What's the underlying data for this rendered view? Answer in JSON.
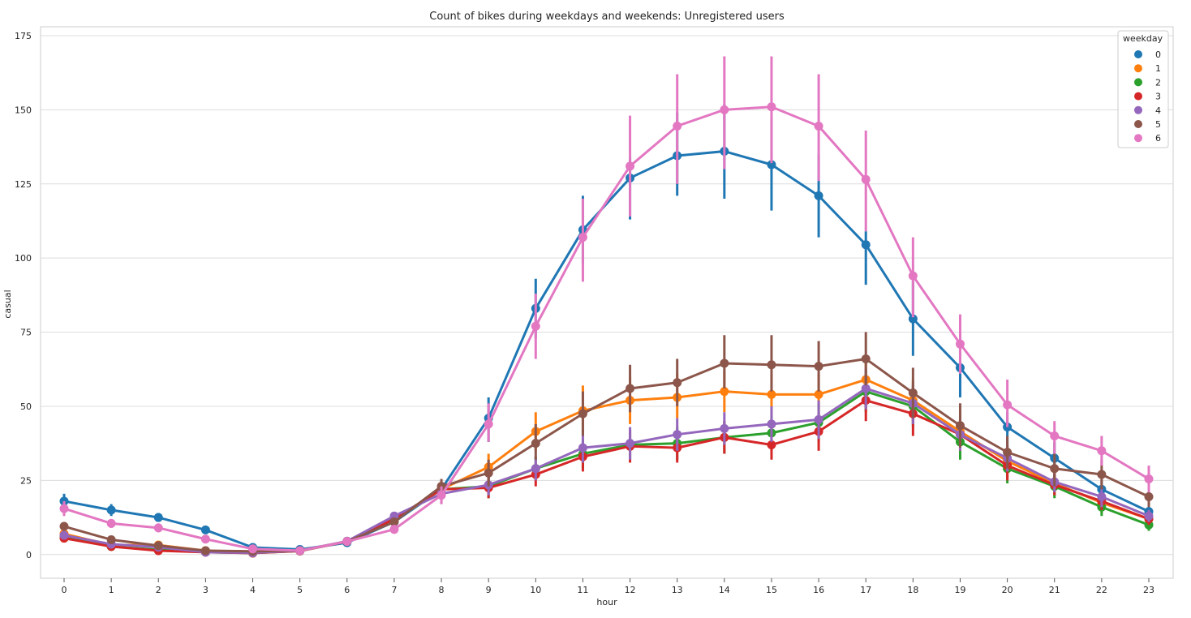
{
  "chart_data": {
    "type": "line",
    "title": "Count of bikes during weekdays and weekends: Unregistered users",
    "xlabel": "hour",
    "ylabel": "casual",
    "categories": [
      "0",
      "1",
      "2",
      "3",
      "4",
      "5",
      "6",
      "7",
      "8",
      "9",
      "10",
      "11",
      "12",
      "13",
      "14",
      "15",
      "16",
      "17",
      "18",
      "19",
      "20",
      "21",
      "22",
      "23"
    ],
    "ylim": [
      -8,
      178
    ],
    "yticks": [
      0,
      25,
      50,
      75,
      100,
      125,
      150,
      175
    ],
    "grid": true,
    "legend": {
      "title": "weekday",
      "placement": "top-right"
    },
    "series": [
      {
        "name": "0",
        "color": "#1f77b4",
        "values": [
          18,
          15,
          12.5,
          8.3,
          2.4,
          1.7,
          4,
          11,
          22,
          46,
          83,
          109.5,
          127,
          134.5,
          136,
          131.5,
          121,
          104.5,
          79.5,
          63,
          43,
          32.5,
          22,
          14.5
        ],
        "ci": [
          [
            16,
            20.5
          ],
          [
            13,
            17
          ],
          [
            11,
            14
          ],
          [
            7.3,
            9.3
          ],
          [
            2,
            2.8
          ],
          [
            1.4,
            2
          ],
          [
            3.6,
            4.4
          ],
          [
            10,
            12
          ],
          [
            21,
            23
          ],
          [
            38,
            53
          ],
          [
            73,
            93
          ],
          [
            98,
            121
          ],
          [
            113,
            134
          ],
          [
            121,
            149
          ],
          [
            120,
            152
          ],
          [
            116,
            147
          ],
          [
            107,
            135
          ],
          [
            91,
            109
          ],
          [
            67,
            92
          ],
          [
            53,
            73
          ],
          [
            36,
            48
          ],
          [
            28,
            38
          ],
          [
            18,
            25
          ],
          [
            12,
            17
          ]
        ]
      },
      {
        "name": "1",
        "color": "#ff7f0e",
        "values": [
          7,
          3.2,
          3.2,
          1.3,
          0.9,
          1.3,
          4.4,
          11.5,
          22,
          29.5,
          41.5,
          48.5,
          52,
          53,
          55,
          54,
          54,
          59,
          52,
          41.5,
          31.5,
          24,
          17.5,
          12
        ],
        "ci": [
          [
            5.5,
            11
          ],
          [
            2.5,
            4
          ],
          [
            2.5,
            4
          ],
          [
            1,
            1.6
          ],
          [
            0.7,
            1.1
          ],
          [
            1,
            1.6
          ],
          [
            4,
            5
          ],
          [
            10,
            13
          ],
          [
            20,
            24
          ],
          [
            25,
            34
          ],
          [
            35,
            48
          ],
          [
            41,
            57
          ],
          [
            44,
            60
          ],
          [
            46,
            61
          ],
          [
            48,
            62
          ],
          [
            47,
            61
          ],
          [
            47,
            61
          ],
          [
            52,
            66
          ],
          [
            45,
            59
          ],
          [
            35,
            48
          ],
          [
            26,
            37
          ],
          [
            20,
            28
          ],
          [
            14,
            21
          ],
          [
            9,
            15
          ]
        ]
      },
      {
        "name": "2",
        "color": "#2ca02c",
        "values": [
          6,
          2.7,
          1.6,
          0.8,
          0.5,
          1.2,
          4.4,
          12,
          22,
          23,
          29,
          34,
          37,
          37.5,
          39.5,
          41,
          44.5,
          55,
          50,
          38,
          29,
          23,
          16,
          10
        ],
        "ci": [
          [
            5,
            7
          ],
          [
            2.2,
            3.2
          ],
          [
            1.3,
            2
          ],
          [
            0.6,
            1
          ],
          [
            0.4,
            0.6
          ],
          [
            1,
            1.4
          ],
          [
            4,
            4.8
          ],
          [
            11,
            13
          ],
          [
            20,
            24
          ],
          [
            19,
            27
          ],
          [
            25,
            33
          ],
          [
            29,
            39
          ],
          [
            32,
            42
          ],
          [
            32,
            43
          ],
          [
            34,
            45
          ],
          [
            35,
            47
          ],
          [
            38,
            51
          ],
          [
            48,
            62
          ],
          [
            43,
            57
          ],
          [
            32,
            44
          ],
          [
            24,
            34
          ],
          [
            19,
            27
          ],
          [
            13,
            19
          ],
          [
            8,
            12
          ]
        ]
      },
      {
        "name": "3",
        "color": "#d62728",
        "values": [
          5.5,
          2.7,
          1.3,
          0.8,
          0.5,
          1.2,
          4.4,
          12,
          22,
          22.5,
          27,
          33,
          36.5,
          36,
          39.5,
          37,
          41.5,
          52,
          47.5,
          40.5,
          30,
          23.5,
          18,
          12
        ],
        "ci": [
          [
            4.5,
            6.5
          ],
          [
            2.2,
            3.2
          ],
          [
            1,
            1.6
          ],
          [
            0.6,
            1
          ],
          [
            0.4,
            0.6
          ],
          [
            1,
            1.4
          ],
          [
            4,
            4.8
          ],
          [
            11,
            13
          ],
          [
            20,
            24
          ],
          [
            19,
            26
          ],
          [
            23,
            31
          ],
          [
            28,
            38
          ],
          [
            31,
            42
          ],
          [
            31,
            41
          ],
          [
            34,
            45
          ],
          [
            32,
            42
          ],
          [
            35,
            48
          ],
          [
            45,
            58
          ],
          [
            40,
            54
          ],
          [
            35,
            46
          ],
          [
            25,
            35
          ],
          [
            20,
            27
          ],
          [
            15,
            21
          ],
          [
            10,
            14
          ]
        ]
      },
      {
        "name": "4",
        "color": "#9467bd",
        "values": [
          6.5,
          3.5,
          2.5,
          0.8,
          0.6,
          1.3,
          4.5,
          13,
          20.5,
          23.5,
          29,
          36,
          37.5,
          40.5,
          42.5,
          44,
          45.5,
          56,
          51,
          40.5,
          32.5,
          24.5,
          19.5,
          13
        ],
        "ci": [
          [
            5.5,
            7.5
          ],
          [
            2.9,
            4.2
          ],
          [
            2,
            3
          ],
          [
            0.6,
            1
          ],
          [
            0.5,
            0.7
          ],
          [
            1.1,
            1.5
          ],
          [
            4.1,
            4.9
          ],
          [
            12,
            14
          ],
          [
            17,
            24
          ],
          [
            20,
            27
          ],
          [
            25,
            33
          ],
          [
            31,
            42
          ],
          [
            32,
            43
          ],
          [
            35,
            46
          ],
          [
            37,
            48
          ],
          [
            38,
            50
          ],
          [
            39,
            52
          ],
          [
            49,
            63
          ],
          [
            44,
            58
          ],
          [
            35,
            46
          ],
          [
            28,
            37
          ],
          [
            21,
            28
          ],
          [
            16,
            23
          ],
          [
            11,
            15
          ]
        ]
      },
      {
        "name": "5",
        "color": "#8c564b",
        "values": [
          9.5,
          5,
          3,
          1.3,
          1.1,
          1.3,
          4.4,
          11,
          23,
          27.5,
          37.5,
          47.5,
          56,
          58,
          64.5,
          64,
          63.5,
          66,
          54.5,
          43.5,
          34.5,
          29,
          27,
          19.5
        ],
        "ci": [
          [
            8,
            11
          ],
          [
            4.2,
            5.8
          ],
          [
            2.5,
            3.5
          ],
          [
            1,
            1.6
          ],
          [
            0.8,
            1.4
          ],
          [
            1,
            1.6
          ],
          [
            4,
            4.8
          ],
          [
            10,
            12
          ],
          [
            21,
            25.5
          ],
          [
            23,
            32
          ],
          [
            32,
            44
          ],
          [
            40,
            55
          ],
          [
            48,
            64
          ],
          [
            50,
            66
          ],
          [
            56,
            74
          ],
          [
            55,
            74
          ],
          [
            55,
            72
          ],
          [
            57,
            75
          ],
          [
            46,
            63
          ],
          [
            36,
            51
          ],
          [
            29,
            40
          ],
          [
            23,
            34
          ],
          [
            22,
            32
          ],
          [
            16,
            24
          ]
        ]
      },
      {
        "name": "6",
        "color": "#e377c2",
        "values": [
          15.5,
          10.5,
          9,
          5.2,
          1.9,
          1.3,
          4.4,
          8.5,
          20,
          44,
          77,
          107,
          131,
          144.5,
          150,
          151,
          144.5,
          126.5,
          94,
          71,
          50.5,
          40,
          35,
          25.5
        ],
        "ci": [
          [
            13,
            18
          ],
          [
            9,
            12
          ],
          [
            7.5,
            10.5
          ],
          [
            4.3,
            6.1
          ],
          [
            1.5,
            2.3
          ],
          [
            1,
            1.6
          ],
          [
            4,
            4.8
          ],
          [
            7,
            10
          ],
          [
            17,
            23
          ],
          [
            38,
            51
          ],
          [
            66,
            88
          ],
          [
            92,
            120
          ],
          [
            114,
            148
          ],
          [
            125,
            162
          ],
          [
            130,
            168
          ],
          [
            132,
            168
          ],
          [
            126,
            162
          ],
          [
            109,
            143
          ],
          [
            80,
            107
          ],
          [
            61,
            81
          ],
          [
            43,
            59
          ],
          [
            34,
            45
          ],
          [
            30,
            40
          ],
          [
            21,
            30
          ]
        ]
      }
    ]
  }
}
